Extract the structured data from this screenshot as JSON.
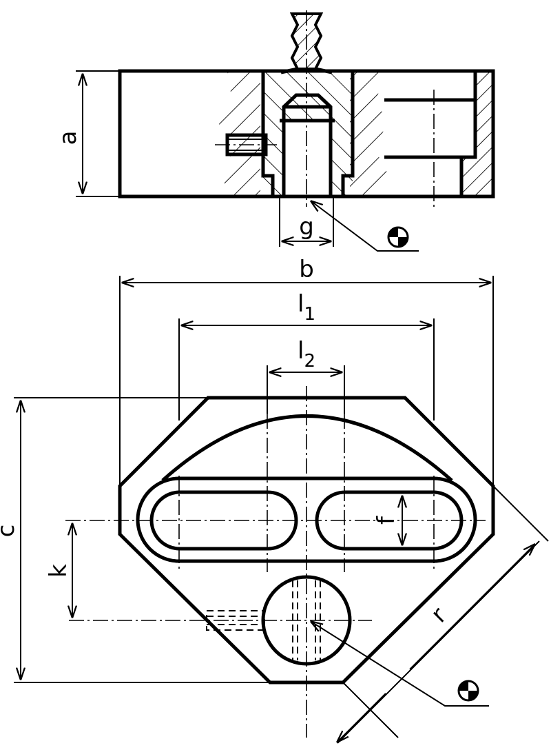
{
  "labels": {
    "a": "a",
    "b": "b",
    "c": "c",
    "g": "g",
    "k": "k",
    "f": "f",
    "r": "r",
    "l1_base": "l",
    "l1_sub": "1",
    "l2_base": "l",
    "l2_sub": "2"
  },
  "symbols": {
    "top_marker": "center-of-gravity-icon",
    "bottom_marker": "center-of-gravity-icon"
  },
  "colors": {
    "ink": "#000000",
    "paper": "#ffffff"
  }
}
